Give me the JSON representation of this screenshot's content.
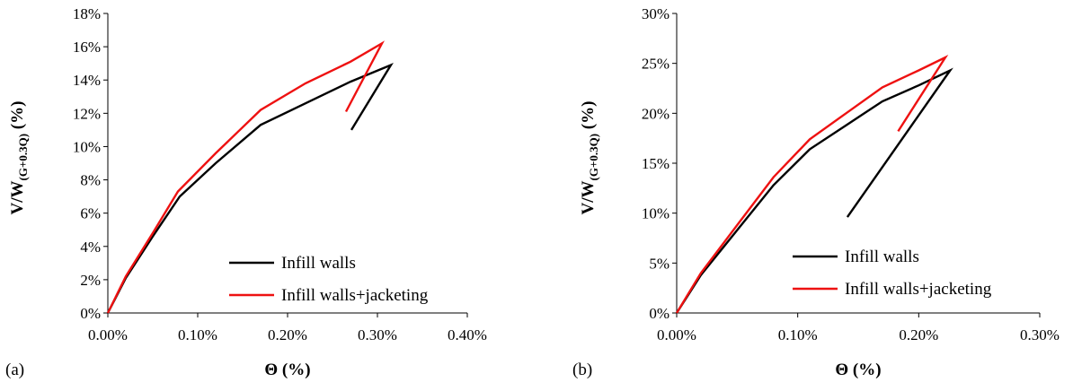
{
  "chart_data": [
    {
      "type": "line",
      "panel_label": "(a)",
      "xlabel": "Θ (%)",
      "ylabel_main": "V/W",
      "ylabel_sub": "(G+0.3Q)",
      "ylabel_tail": " (%)",
      "xlim": [
        0,
        0.4
      ],
      "ylim": [
        0,
        18
      ],
      "xticks": [
        0,
        0.1,
        0.2,
        0.3,
        0.4
      ],
      "xtick_labels": [
        "0.00%",
        "0.10%",
        "0.20%",
        "0.30%",
        "0.40%"
      ],
      "yticks": [
        0,
        2,
        4,
        6,
        8,
        10,
        12,
        14,
        16,
        18
      ],
      "ytick_labels": [
        "0%",
        "2%",
        "4%",
        "6%",
        "8%",
        "10%",
        "12%",
        "14%",
        "16%",
        "18%"
      ],
      "legend_position": "bottom-right",
      "series": [
        {
          "name": "Infill walls",
          "color": "#000000",
          "x": [
            0.0,
            0.02,
            0.05,
            0.08,
            0.12,
            0.17,
            0.22,
            0.27,
            0.315,
            0.271
          ],
          "y": [
            0.0,
            2.1,
            4.6,
            7.0,
            9.0,
            11.3,
            12.6,
            13.9,
            14.9,
            11.0
          ]
        },
        {
          "name": "Infill walls+jacketing",
          "color": "#ee1111",
          "x": [
            0.0,
            0.02,
            0.05,
            0.078,
            0.12,
            0.17,
            0.22,
            0.27,
            0.305,
            0.265
          ],
          "y": [
            0.0,
            2.2,
            4.8,
            7.3,
            9.6,
            12.2,
            13.8,
            15.1,
            16.2,
            12.1
          ]
        }
      ]
    },
    {
      "type": "line",
      "panel_label": "(b)",
      "xlabel": "Θ (%)",
      "ylabel_main": "V/W",
      "ylabel_sub": "(G+0.3Q)",
      "ylabel_tail": " (%)",
      "xlim": [
        0,
        0.3
      ],
      "ylim": [
        0,
        30
      ],
      "xticks": [
        0,
        0.1,
        0.2,
        0.3
      ],
      "xtick_labels": [
        "0.00%",
        "0.10%",
        "0.20%",
        "0.30%"
      ],
      "yticks": [
        0,
        5,
        10,
        15,
        20,
        25,
        30
      ],
      "ytick_labels": [
        "0%",
        "5%",
        "10%",
        "15%",
        "20%",
        "25%",
        "30%"
      ],
      "legend_position": "bottom-right",
      "series": [
        {
          "name": "Infill walls",
          "color": "#000000",
          "x": [
            0.0,
            0.02,
            0.05,
            0.08,
            0.11,
            0.14,
            0.17,
            0.2,
            0.226,
            0.141
          ],
          "y": [
            0.0,
            3.8,
            8.3,
            12.8,
            16.4,
            18.8,
            21.2,
            22.8,
            24.3,
            9.6
          ]
        },
        {
          "name": "Infill walls+jacketing",
          "color": "#ee1111",
          "x": [
            0.0,
            0.02,
            0.05,
            0.08,
            0.11,
            0.14,
            0.17,
            0.2,
            0.222,
            0.183
          ],
          "y": [
            0.0,
            4.0,
            8.8,
            13.6,
            17.4,
            20.0,
            22.6,
            24.3,
            25.6,
            18.2
          ]
        }
      ]
    }
  ]
}
